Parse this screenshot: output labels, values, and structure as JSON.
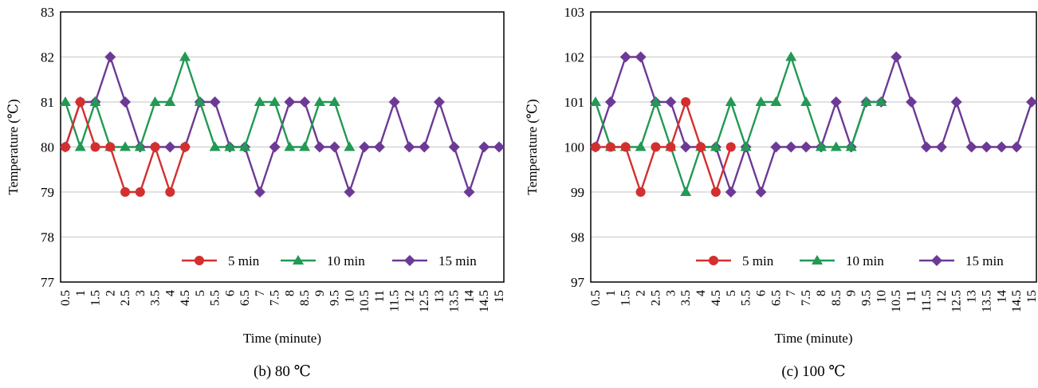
{
  "chart_data": [
    {
      "type": "line",
      "caption": "(b) 80 ℃",
      "xlabel": "Time (minute)",
      "ylabel": "Temperature (℃)",
      "ylim": [
        77,
        83
      ],
      "yticks": [
        "77",
        "78",
        "79",
        "80",
        "81",
        "82",
        "83"
      ],
      "x_tick_labels": [
        "0.5",
        "1",
        "1.5",
        "2",
        "2.5",
        "3",
        "3.5",
        "4",
        "4.5",
        "5",
        "5.5",
        "6",
        "6.5",
        "7",
        "7.5",
        "8",
        "8.5",
        "9",
        "9.5",
        "10",
        "10.5",
        "11",
        "11.5",
        "12",
        "12.5",
        "13",
        "13.5",
        "14",
        "14.5",
        "15"
      ],
      "grid": true,
      "legend_position": "bottom-right",
      "series": [
        {
          "name": "5 min",
          "color": "#d32f2f",
          "marker": "circle",
          "x": [
            0.5,
            1,
            1.5,
            2,
            2.5,
            3,
            3.5,
            4,
            4.5
          ],
          "y": [
            80,
            81,
            80,
            80,
            79,
            79,
            80,
            79,
            80
          ]
        },
        {
          "name": "10 min",
          "color": "#229954",
          "marker": "triangle",
          "x": [
            0.5,
            1,
            1.5,
            2,
            2.5,
            3,
            3.5,
            4,
            4.5,
            5,
            5.5,
            6,
            6.5,
            7,
            7.5,
            8,
            8.5,
            9,
            9.5,
            10
          ],
          "y": [
            81,
            80,
            81,
            80,
            80,
            80,
            81,
            81,
            82,
            81,
            80,
            80,
            80,
            81,
            81,
            80,
            80,
            81,
            81,
            80
          ]
        },
        {
          "name": "15 min",
          "color": "#6c3a96",
          "marker": "diamond",
          "x": [
            0.5,
            1,
            1.5,
            2,
            2.5,
            3,
            3.5,
            4,
            4.5,
            5,
            5.5,
            6,
            6.5,
            7,
            7.5,
            8,
            8.5,
            9,
            9.5,
            10,
            10.5,
            11,
            11.5,
            12,
            12.5,
            13,
            13.5,
            14,
            14.5,
            15
          ],
          "y": [
            80,
            81,
            81,
            82,
            81,
            80,
            80,
            80,
            80,
            81,
            81,
            80,
            80,
            79,
            80,
            81,
            81,
            80,
            80,
            79,
            80,
            80,
            81,
            80,
            80,
            81,
            80,
            79,
            80,
            80
          ]
        }
      ]
    },
    {
      "type": "line",
      "caption": "(c) 100 ℃",
      "xlabel": "Time (minute)",
      "ylabel": "Temperature (℃)",
      "ylim": [
        97,
        103
      ],
      "yticks": [
        "97",
        "98",
        "99",
        "100",
        "101",
        "102",
        "103"
      ],
      "x_tick_labels": [
        "0.5",
        "1",
        "1.5",
        "2",
        "2.5",
        "3",
        "3.5",
        "4",
        "4.5",
        "5",
        "5.5",
        "6",
        "6.5",
        "7",
        "7.5",
        "8",
        "8.5",
        "9",
        "9.5",
        "10",
        "10.5",
        "11",
        "11.5",
        "12",
        "12.5",
        "13",
        "13.5",
        "14",
        "14.5",
        "15"
      ],
      "grid": true,
      "legend_position": "bottom-right",
      "series": [
        {
          "name": "5 min",
          "color": "#d32f2f",
          "marker": "circle",
          "x": [
            0.5,
            1,
            1.5,
            2,
            2.5,
            3,
            3.5,
            4,
            4.5,
            5
          ],
          "y": [
            100,
            100,
            100,
            99,
            100,
            100,
            101,
            100,
            99,
            100
          ]
        },
        {
          "name": "10 min",
          "color": "#229954",
          "marker": "triangle",
          "x": [
            0.5,
            1,
            1.5,
            2,
            2.5,
            3,
            3.5,
            4,
            4.5,
            5,
            5.5,
            6,
            6.5,
            7,
            7.5,
            8,
            8.5,
            9,
            9.5,
            10
          ],
          "y": [
            101,
            100,
            100,
            100,
            101,
            100,
            99,
            100,
            100,
            101,
            100,
            101,
            101,
            102,
            101,
            100,
            100,
            100,
            101,
            101
          ]
        },
        {
          "name": "15 min",
          "color": "#6c3a96",
          "marker": "diamond",
          "x": [
            0.5,
            1,
            1.5,
            2,
            2.5,
            3,
            3.5,
            4,
            4.5,
            5,
            5.5,
            6,
            6.5,
            7,
            7.5,
            8,
            8.5,
            9,
            9.5,
            10,
            10.5,
            11,
            11.5,
            12,
            12.5,
            13,
            13.5,
            14,
            14.5,
            15
          ],
          "y": [
            100,
            101,
            102,
            102,
            101,
            101,
            100,
            100,
            100,
            99,
            100,
            99,
            100,
            100,
            100,
            100,
            101,
            100,
            101,
            101,
            102,
            101,
            100,
            100,
            101,
            100,
            100,
            100,
            100,
            101
          ]
        }
      ]
    }
  ]
}
